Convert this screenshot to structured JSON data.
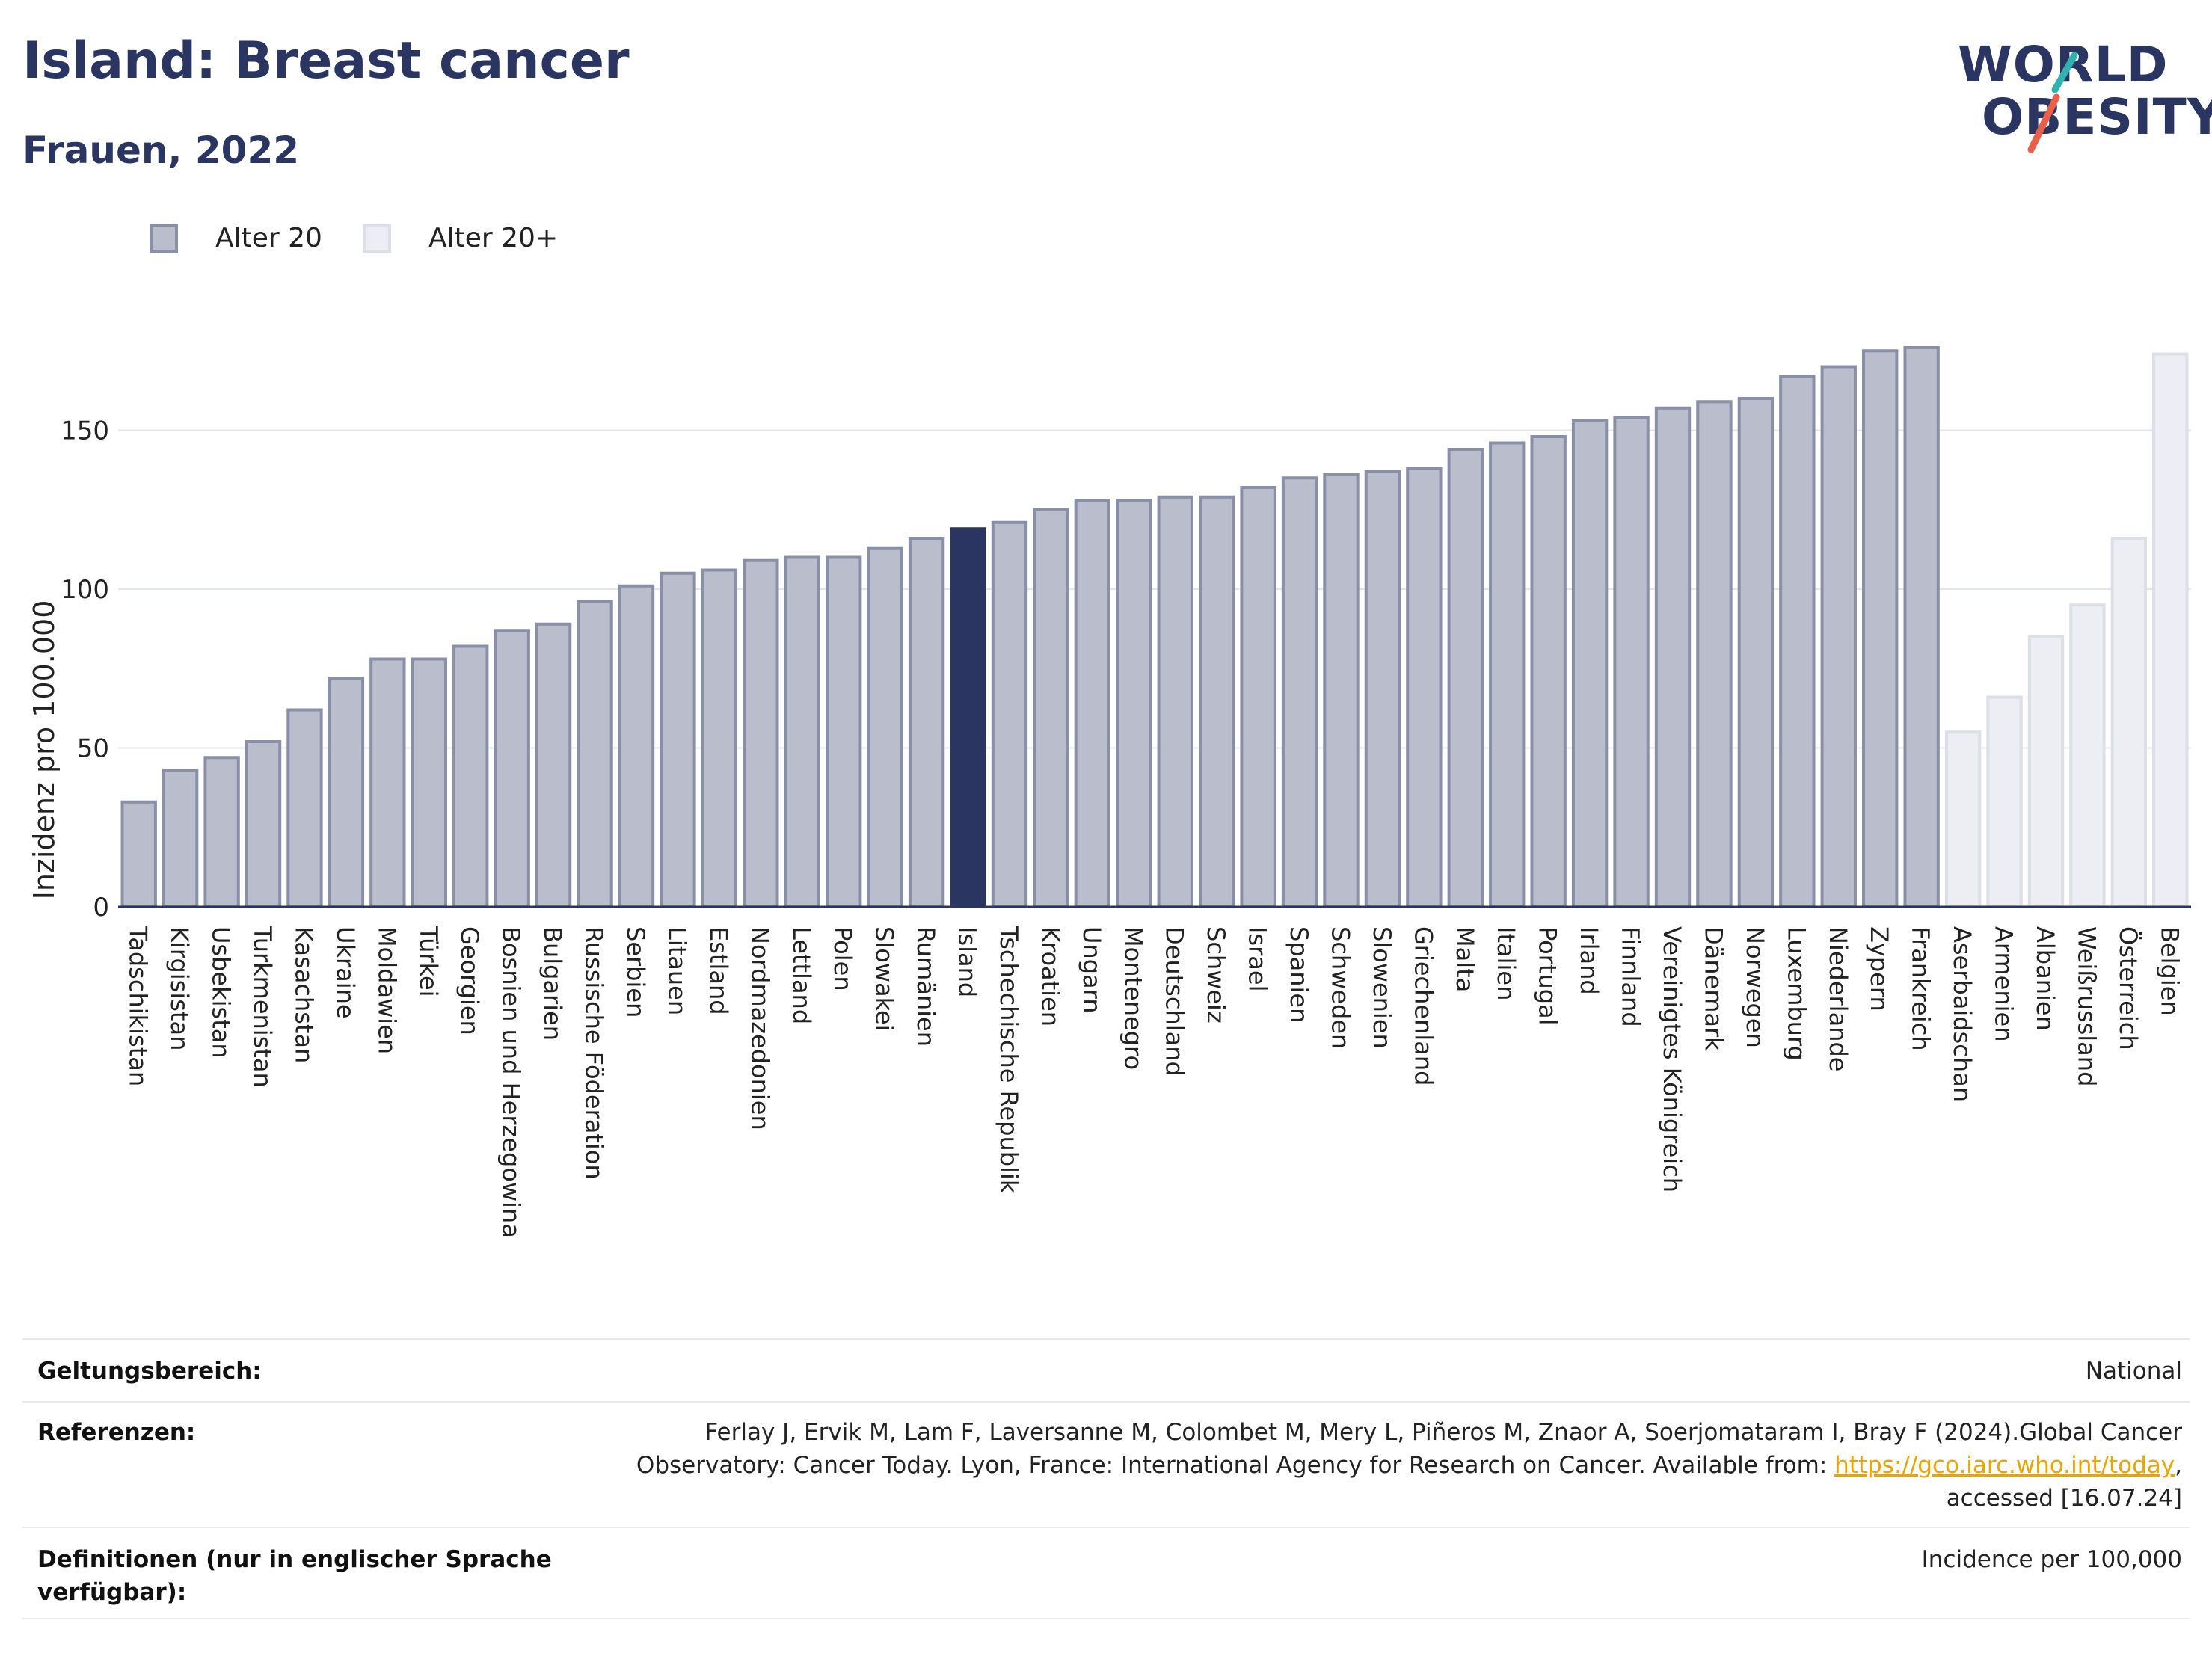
{
  "title": "Island: Breast cancer",
  "subtitle": "Frauen, 2022",
  "logo": {
    "line1": "WORLD",
    "line2": "OBESITY",
    "accent_teal": "#2fb3b0",
    "accent_red": "#e8604c"
  },
  "legend": [
    {
      "label": "Alter 20",
      "color": "#b9bdcc",
      "border": "#8a8fa8"
    },
    {
      "label": "Alter 20+",
      "color": "#eceef3",
      "border": "#dcdfe7"
    }
  ],
  "chart_data": {
    "type": "bar",
    "title": "Island: Breast cancer",
    "subtitle": "Frauen, 2022",
    "xlabel": "",
    "ylabel": "Inzidenz pro 100.000",
    "ylim": [
      0,
      180
    ],
    "yticks": [
      0,
      50,
      100,
      150
    ],
    "grid": true,
    "highlight": "Island",
    "highlight_color": "#2a3561",
    "categories": [
      "Tadschikistan",
      "Kirgisistan",
      "Usbekistan",
      "Turkmenistan",
      "Kasachstan",
      "Ukraine",
      "Moldawien",
      "Türkei",
      "Georgien",
      "Bosnien und Herzegowina",
      "Bulgarien",
      "Russische Föderation",
      "Serbien",
      "Litauen",
      "Estland",
      "Nordmazedonien",
      "Lettland",
      "Polen",
      "Slowakei",
      "Rumänien",
      "Island",
      "Tschechische Republik",
      "Kroatien",
      "Ungarn",
      "Montenegro",
      "Deutschland",
      "Schweiz",
      "Israel",
      "Spanien",
      "Schweden",
      "Slowenien",
      "Griechenland",
      "Malta",
      "Italien",
      "Portugal",
      "Irland",
      "Finnland",
      "Vereinigtes Königreich",
      "Dänemark",
      "Norwegen",
      "Luxemburg",
      "Niederlande",
      "Zypern",
      "Frankreich",
      "Aserbaidschan",
      "Armenien",
      "Albanien",
      "Weißrussland",
      "Österreich",
      "Belgien"
    ],
    "series": [
      {
        "name": "Alter 20",
        "values": [
          33,
          43,
          47,
          52,
          62,
          72,
          78,
          78,
          82,
          87,
          89,
          96,
          101,
          105,
          106,
          109,
          110,
          110,
          113,
          116,
          119,
          121,
          125,
          128,
          128,
          129,
          129,
          132,
          135,
          136,
          137,
          138,
          144,
          146,
          148,
          153,
          154,
          157,
          159,
          160,
          167,
          170,
          175,
          176,
          null,
          null,
          null,
          null,
          null,
          null
        ]
      },
      {
        "name": "Alter 20+",
        "values": [
          null,
          null,
          null,
          null,
          null,
          null,
          null,
          null,
          null,
          null,
          null,
          null,
          null,
          null,
          null,
          null,
          null,
          null,
          null,
          null,
          null,
          null,
          null,
          null,
          null,
          null,
          null,
          null,
          null,
          null,
          null,
          null,
          null,
          null,
          null,
          null,
          null,
          null,
          null,
          null,
          null,
          null,
          null,
          null,
          55,
          66,
          85,
          95,
          116,
          174
        ]
      }
    ]
  },
  "meta": {
    "scope_label": "Geltungsbereich:",
    "scope_value": "National",
    "refs_label": "Referenzen:",
    "refs_line1": "Ferlay J, Ervik M, Lam F, Laversanne M, Colombet M, Mery L, Piñeros M, Znaor A, Soerjomataram I, Bray F (2024).Global Cancer",
    "refs_line2_pre": "Observatory: Cancer Today. Lyon, France: International Agency for Research on Cancer. Available from: ",
    "refs_link": "https://gco.iarc.who.int/today",
    "refs_line2_post": ",",
    "refs_line3": "accessed [16.07.24]",
    "defs_label_line1": "Definitionen (nur in englischer Sprache",
    "defs_label_line2": "verfügbar):",
    "defs_value": "Incidence per 100,000"
  }
}
